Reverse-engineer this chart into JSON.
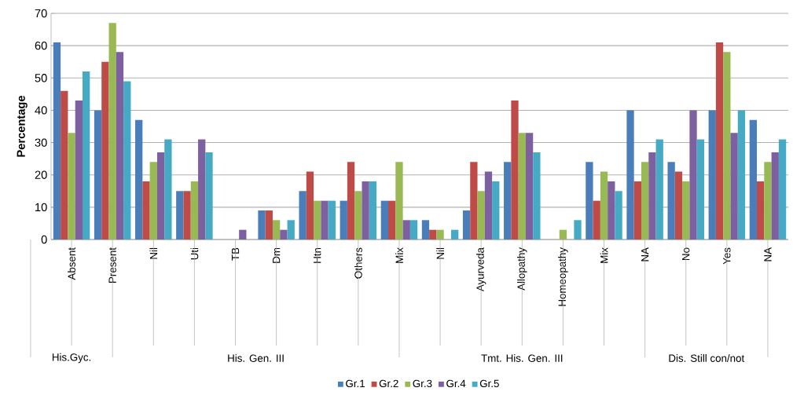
{
  "chart_data": {
    "type": "bar",
    "ylabel": "Percentage",
    "categories": [
      "Absent",
      "Present",
      "Nil",
      "Uti",
      "TB",
      "Dm",
      "Htn",
      "Others",
      "Mix",
      "Nil",
      "Ayurveda",
      "Allopathy",
      "Homeopathy",
      "Mix",
      "NA",
      "No",
      "Yes",
      "NA"
    ],
    "series": [
      {
        "name": "Gr.1",
        "color": "#4a7ebb",
        "values": [
          61,
          40,
          37,
          15,
          0,
          9,
          15,
          12,
          12,
          6,
          9,
          24,
          0,
          24,
          40,
          24,
          40,
          37
        ]
      },
      {
        "name": "Gr.2",
        "color": "#be4b48",
        "values": [
          46,
          55,
          18,
          15,
          0,
          9,
          21,
          24,
          12,
          3,
          24,
          43,
          0,
          12,
          18,
          21,
          61,
          18
        ]
      },
      {
        "name": "Gr.3",
        "color": "#98b954",
        "values": [
          33,
          67,
          24,
          18,
          0,
          6,
          12,
          15,
          24,
          3,
          15,
          33,
          3,
          21,
          24,
          18,
          58,
          24
        ]
      },
      {
        "name": "Gr.4",
        "color": "#7d60a0",
        "values": [
          43,
          58,
          27,
          31,
          3,
          3,
          12,
          18,
          6,
          0,
          21,
          33,
          0,
          18,
          27,
          40,
          33,
          27
        ]
      },
      {
        "name": "Gr.5",
        "color": "#46aac5",
        "values": [
          52,
          49,
          31,
          27,
          0,
          6,
          12,
          18,
          6,
          3,
          18,
          27,
          6,
          15,
          31,
          31,
          40,
          31
        ]
      }
    ],
    "annotations": [
      "His.Gyc.",
      "His. Gen. III",
      "Tmt. His. Gen. III",
      "Dis. Still con/not"
    ],
    "ylim": [
      0,
      70
    ],
    "yticks": [
      0,
      10,
      20,
      30,
      40,
      50,
      60,
      70
    ],
    "grid": "y",
    "legend": "bottom"
  }
}
